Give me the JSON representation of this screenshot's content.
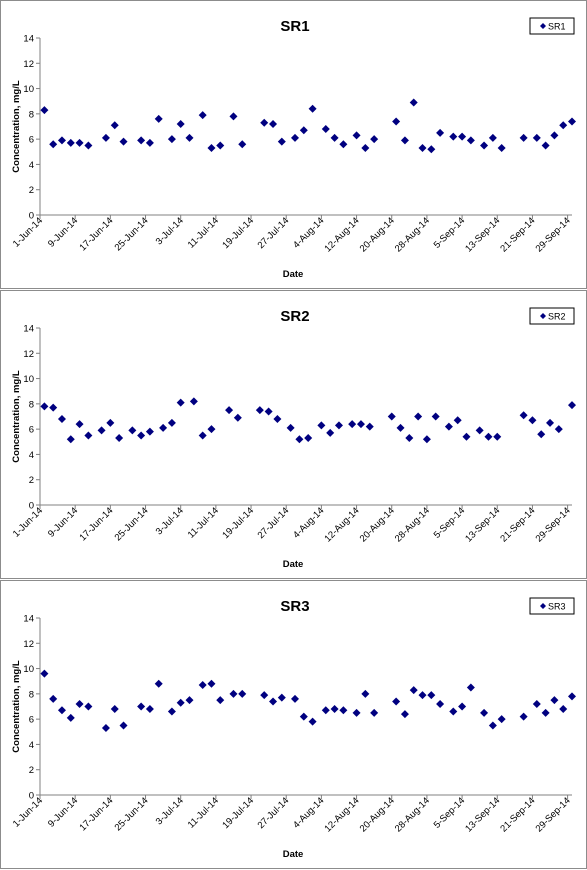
{
  "chart_data": [
    {
      "type": "scatter",
      "title": "SR1",
      "xlabel": "Date",
      "ylabel": "Concentration, mg/L",
      "ylim": [
        0,
        14
      ],
      "y_ticks": [
        "0",
        "2",
        "4",
        "6",
        "8",
        "10",
        "12",
        "14"
      ],
      "x_range": [
        "2014-06-01",
        "2014-09-30"
      ],
      "x_ticks": [
        "1-Jun-14",
        "9-Jun-14",
        "17-Jun-14",
        "25-Jun-14",
        "3-Jul-14",
        "11-Jul-14",
        "19-Jul-14",
        "27-Jul-14",
        "4-Aug-14",
        "12-Aug-14",
        "20-Aug-14",
        "28-Aug-14",
        "5-Sep-14",
        "13-Sep-14",
        "21-Sep-14",
        "29-Sep-14"
      ],
      "grid": false,
      "legend_position": "top-right",
      "series": [
        {
          "name": "SR1",
          "color": "#000080",
          "marker": "diamond",
          "x": [
            "2014-06-02",
            "2014-06-04",
            "2014-06-06",
            "2014-06-08",
            "2014-06-10",
            "2014-06-12",
            "2014-06-16",
            "2014-06-18",
            "2014-06-20",
            "2014-06-24",
            "2014-06-26",
            "2014-06-28",
            "2014-07-01",
            "2014-07-03",
            "2014-07-05",
            "2014-07-08",
            "2014-07-10",
            "2014-07-12",
            "2014-07-15",
            "2014-07-17",
            "2014-07-22",
            "2014-07-24",
            "2014-07-26",
            "2014-07-29",
            "2014-07-31",
            "2014-08-02",
            "2014-08-05",
            "2014-08-07",
            "2014-08-09",
            "2014-08-12",
            "2014-08-14",
            "2014-08-16",
            "2014-08-21",
            "2014-08-23",
            "2014-08-25",
            "2014-08-27",
            "2014-08-29",
            "2014-08-31",
            "2014-09-03",
            "2014-09-05",
            "2014-09-07",
            "2014-09-10",
            "2014-09-12",
            "2014-09-14",
            "2014-09-19",
            "2014-09-22",
            "2014-09-24",
            "2014-09-26",
            "2014-09-28",
            "2014-09-30"
          ],
          "y": [
            8.3,
            5.6,
            5.9,
            5.7,
            5.7,
            5.5,
            6.1,
            7.1,
            5.8,
            5.9,
            5.7,
            7.6,
            6.0,
            7.2,
            6.1,
            7.9,
            5.3,
            5.5,
            7.8,
            5.6,
            7.3,
            7.2,
            5.8,
            6.1,
            6.7,
            8.4,
            6.8,
            6.1,
            5.6,
            6.3,
            5.3,
            6.0,
            7.4,
            5.9,
            8.9,
            5.3,
            5.2,
            6.5,
            6.2,
            6.2,
            5.9,
            5.5,
            6.1,
            5.3,
            6.1,
            6.1,
            5.5,
            6.3,
            7.1,
            7.4
          ]
        }
      ]
    },
    {
      "type": "scatter",
      "title": "SR2",
      "xlabel": "Date",
      "ylabel": "Concentration, mg/L",
      "ylim": [
        0,
        14
      ],
      "y_ticks": [
        "0",
        "2",
        "4",
        "6",
        "8",
        "10",
        "12",
        "14"
      ],
      "x_range": [
        "2014-06-01",
        "2014-09-30"
      ],
      "x_ticks": [
        "1-Jun-14",
        "9-Jun-14",
        "17-Jun-14",
        "25-Jun-14",
        "3-Jul-14",
        "11-Jul-14",
        "19-Jul-14",
        "27-Jul-14",
        "4-Aug-14",
        "12-Aug-14",
        "20-Aug-14",
        "28-Aug-14",
        "5-Sep-14",
        "13-Sep-14",
        "21-Sep-14",
        "29-Sep-14"
      ],
      "grid": false,
      "legend_position": "top-right",
      "series": [
        {
          "name": "SR2",
          "color": "#000080",
          "marker": "diamond",
          "x": [
            "2014-06-02",
            "2014-06-04",
            "2014-06-06",
            "2014-06-08",
            "2014-06-10",
            "2014-06-12",
            "2014-06-15",
            "2014-06-17",
            "2014-06-19",
            "2014-06-22",
            "2014-06-24",
            "2014-06-26",
            "2014-06-29",
            "2014-07-01",
            "2014-07-03",
            "2014-07-06",
            "2014-07-08",
            "2014-07-10",
            "2014-07-14",
            "2014-07-16",
            "2014-07-21",
            "2014-07-23",
            "2014-07-25",
            "2014-07-28",
            "2014-07-30",
            "2014-08-01",
            "2014-08-04",
            "2014-08-06",
            "2014-08-08",
            "2014-08-11",
            "2014-08-13",
            "2014-08-15",
            "2014-08-20",
            "2014-08-22",
            "2014-08-24",
            "2014-08-26",
            "2014-08-28",
            "2014-08-30",
            "2014-09-02",
            "2014-09-04",
            "2014-09-06",
            "2014-09-09",
            "2014-09-11",
            "2014-09-13",
            "2014-09-19",
            "2014-09-21",
            "2014-09-23",
            "2014-09-25",
            "2014-09-27",
            "2014-09-30"
          ],
          "y": [
            7.8,
            7.7,
            6.8,
            5.2,
            6.4,
            5.5,
            5.9,
            6.5,
            5.3,
            5.9,
            5.5,
            5.8,
            6.1,
            6.5,
            8.1,
            8.2,
            5.5,
            6.0,
            7.5,
            6.9,
            7.5,
            7.4,
            6.8,
            6.1,
            5.2,
            5.3,
            6.3,
            5.7,
            6.3,
            6.4,
            6.4,
            6.2,
            7.0,
            6.1,
            5.3,
            7.0,
            5.2,
            7.0,
            6.2,
            6.7,
            5.4,
            5.9,
            5.4,
            5.4,
            7.1,
            6.7,
            5.6,
            6.5,
            6.0,
            7.9
          ]
        }
      ]
    },
    {
      "type": "scatter",
      "title": "SR3",
      "xlabel": "Date",
      "ylabel": "Concentration, mg/L",
      "ylim": [
        0,
        14
      ],
      "y_ticks": [
        "0",
        "2",
        "4",
        "6",
        "8",
        "10",
        "12",
        "14"
      ],
      "x_range": [
        "2014-06-01",
        "2014-09-30"
      ],
      "x_ticks": [
        "1-Jun-14",
        "9-Jun-14",
        "17-Jun-14",
        "25-Jun-14",
        "3-Jul-14",
        "11-Jul-14",
        "19-Jul-14",
        "27-Jul-14",
        "4-Aug-14",
        "12-Aug-14",
        "20-Aug-14",
        "28-Aug-14",
        "5-Sep-14",
        "13-Sep-14",
        "21-Sep-14",
        "29-Sep-14"
      ],
      "grid": false,
      "legend_position": "top-right",
      "series": [
        {
          "name": "SR3",
          "color": "#000080",
          "marker": "diamond",
          "x": [
            "2014-06-02",
            "2014-06-04",
            "2014-06-06",
            "2014-06-08",
            "2014-06-10",
            "2014-06-12",
            "2014-06-16",
            "2014-06-18",
            "2014-06-20",
            "2014-06-24",
            "2014-06-26",
            "2014-06-28",
            "2014-07-01",
            "2014-07-03",
            "2014-07-05",
            "2014-07-08",
            "2014-07-10",
            "2014-07-12",
            "2014-07-15",
            "2014-07-17",
            "2014-07-22",
            "2014-07-24",
            "2014-07-26",
            "2014-07-29",
            "2014-07-31",
            "2014-08-02",
            "2014-08-05",
            "2014-08-07",
            "2014-08-09",
            "2014-08-12",
            "2014-08-14",
            "2014-08-16",
            "2014-08-21",
            "2014-08-23",
            "2014-08-25",
            "2014-08-27",
            "2014-08-29",
            "2014-08-31",
            "2014-09-03",
            "2014-09-05",
            "2014-09-07",
            "2014-09-10",
            "2014-09-12",
            "2014-09-14",
            "2014-09-19",
            "2014-09-22",
            "2014-09-24",
            "2014-09-26",
            "2014-09-28",
            "2014-09-30"
          ],
          "y": [
            9.6,
            7.6,
            6.7,
            6.1,
            7.2,
            7.0,
            5.3,
            6.8,
            5.5,
            7.0,
            6.8,
            8.8,
            6.6,
            7.3,
            7.5,
            8.7,
            8.8,
            7.5,
            8.0,
            8.0,
            7.9,
            7.4,
            7.7,
            7.6,
            6.2,
            5.8,
            6.7,
            6.8,
            6.7,
            6.5,
            8.0,
            6.5,
            7.4,
            6.4,
            8.3,
            7.9,
            7.9,
            7.2,
            6.6,
            7.0,
            8.5,
            6.5,
            5.5,
            6.0,
            6.2,
            7.2,
            6.5,
            7.5,
            6.8,
            7.8
          ]
        }
      ]
    }
  ]
}
